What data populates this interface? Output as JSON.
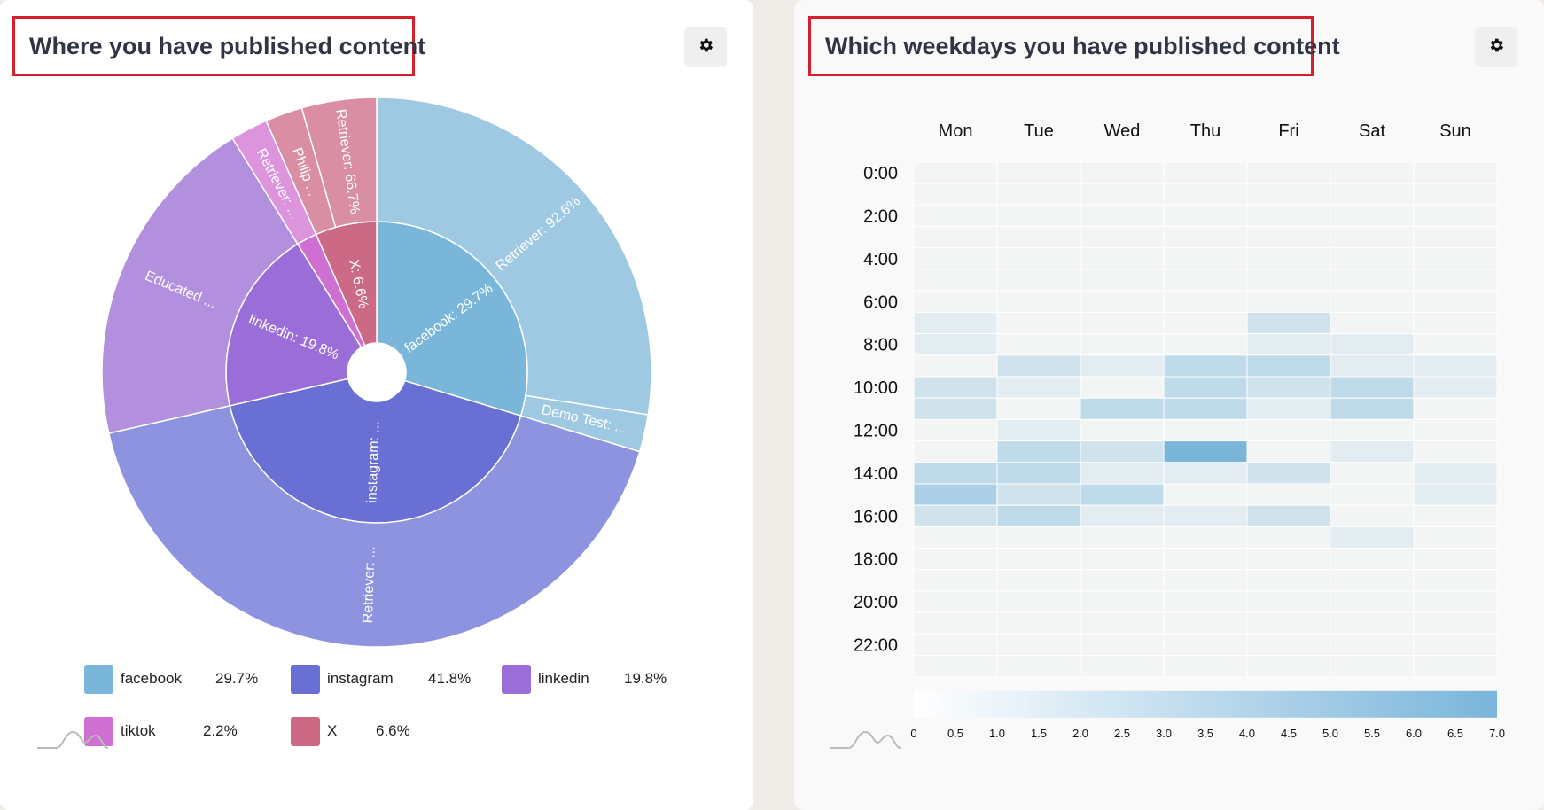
{
  "left_panel": {
    "title": "Where you have published content",
    "settings_icon": "gear-icon",
    "chart_data": {
      "type": "sunburst",
      "inner_ring": [
        {
          "name": "facebook",
          "percent": 29.7,
          "label": "facebook: 29.7%",
          "color": "#7ab5da"
        },
        {
          "name": "instagram",
          "percent": 41.8,
          "label": "instagram: ...",
          "color": "#6a6fd4"
        },
        {
          "name": "linkedin",
          "percent": 19.8,
          "label": "linkedin: 19.8%",
          "color": "#9b6dd8"
        },
        {
          "name": "tiktok",
          "percent": 2.2,
          "label": "",
          "color": "#cf6fd2"
        },
        {
          "name": "X",
          "percent": 6.6,
          "label": "X: 6.6%",
          "color": "#cc6a86"
        }
      ],
      "outer_ring": [
        {
          "parent": "facebook",
          "label": "Retriever: 92.6%",
          "share_of_parent": 92.6,
          "color": "#9fc9e2"
        },
        {
          "parent": "facebook",
          "label": "Demo Test: ...",
          "share_of_parent": 7.4,
          "color": "#9fc9e2"
        },
        {
          "parent": "instagram",
          "label": "Retriever: ...",
          "share_of_parent": 100,
          "color": "#8e93e0"
        },
        {
          "parent": "linkedin",
          "label": "Educated ...",
          "share_of_parent": 100,
          "color": "#b290de"
        },
        {
          "parent": "tiktok",
          "label": "Retriever: ...",
          "share_of_parent": 100,
          "color": "#dc94dd"
        },
        {
          "parent": "X",
          "label": "Philip ...",
          "share_of_parent": 33.3,
          "color": "#d98ea3"
        },
        {
          "parent": "X",
          "label": "Retriever: 66.7%",
          "share_of_parent": 66.7,
          "color": "#d98ea3"
        }
      ],
      "legend": [
        {
          "name": "facebook",
          "value": "29.7%",
          "color": "#7ab5da"
        },
        {
          "name": "instagram",
          "value": "41.8%",
          "color": "#6a6fd4"
        },
        {
          "name": "linkedin",
          "value": "19.8%",
          "color": "#9b6dd8"
        },
        {
          "name": "tiktok",
          "value": "2.2%",
          "color": "#cf6fd2"
        },
        {
          "name": "X",
          "value": "6.6%",
          "color": "#cc6a86"
        }
      ]
    }
  },
  "right_panel": {
    "title": "Which weekdays you have published content",
    "settings_icon": "gear-icon",
    "chart_data": {
      "type": "heatmap",
      "x_categories": [
        "Mon",
        "Tue",
        "Wed",
        "Thu",
        "Fri",
        "Sat",
        "Sun"
      ],
      "y_tick_labels": [
        "0:00",
        "2:00",
        "4:00",
        "6:00",
        "8:00",
        "10:00",
        "12:00",
        "14:00",
        "16:00",
        "18:00",
        "20:00",
        "22:00"
      ],
      "hours": [
        0,
        1,
        2,
        3,
        4,
        5,
        6,
        7,
        8,
        9,
        10,
        11,
        12,
        13,
        14,
        15,
        16,
        17,
        18,
        19,
        20,
        21,
        22,
        23
      ],
      "values": [
        [
          0,
          0,
          0,
          0,
          0,
          0,
          0
        ],
        [
          0,
          0,
          0,
          0,
          0,
          0,
          0
        ],
        [
          0,
          0,
          0,
          0,
          0,
          0,
          0
        ],
        [
          0,
          0,
          0,
          0,
          0,
          0,
          0
        ],
        [
          0,
          0,
          0,
          0,
          0,
          0,
          0
        ],
        [
          0,
          0,
          0,
          0,
          0,
          0,
          0
        ],
        [
          0,
          0,
          0,
          0,
          0,
          0,
          0
        ],
        [
          1,
          0,
          0,
          0,
          2,
          0,
          0
        ],
        [
          1,
          0,
          0,
          0,
          1,
          1,
          0
        ],
        [
          0,
          2,
          1,
          3,
          3,
          1,
          1
        ],
        [
          2,
          1,
          0,
          3,
          2,
          3,
          1
        ],
        [
          2,
          0,
          3,
          3,
          1,
          3,
          0
        ],
        [
          0,
          1,
          0,
          0,
          0,
          0,
          0
        ],
        [
          0,
          3,
          2,
          7,
          0,
          1,
          0
        ],
        [
          3,
          3,
          1,
          1,
          2,
          0,
          1
        ],
        [
          4,
          2,
          3,
          0,
          0,
          0,
          1
        ],
        [
          2,
          3,
          1,
          1,
          2,
          0,
          0
        ],
        [
          0,
          0,
          0,
          0,
          0,
          1,
          0
        ],
        [
          0,
          0,
          0,
          0,
          0,
          0,
          0
        ],
        [
          0,
          0,
          0,
          0,
          0,
          0,
          0
        ],
        [
          0,
          0,
          0,
          0,
          0,
          0,
          0
        ],
        [
          0,
          0,
          0,
          0,
          0,
          0,
          0
        ],
        [
          0,
          0,
          0,
          0,
          0,
          0,
          0
        ],
        [
          0,
          0,
          0,
          0,
          0,
          0,
          0
        ]
      ],
      "color_scale": {
        "min": 0,
        "max": 7.0,
        "low_color": "#f3f5f5",
        "high_color": "#7ab5da"
      },
      "colorbar_ticks": [
        "0",
        "0.5",
        "1.0",
        "1.5",
        "2.0",
        "2.5",
        "3.0",
        "3.5",
        "4.0",
        "4.5",
        "5.0",
        "5.5",
        "6.0",
        "6.5",
        "7.0"
      ]
    }
  }
}
